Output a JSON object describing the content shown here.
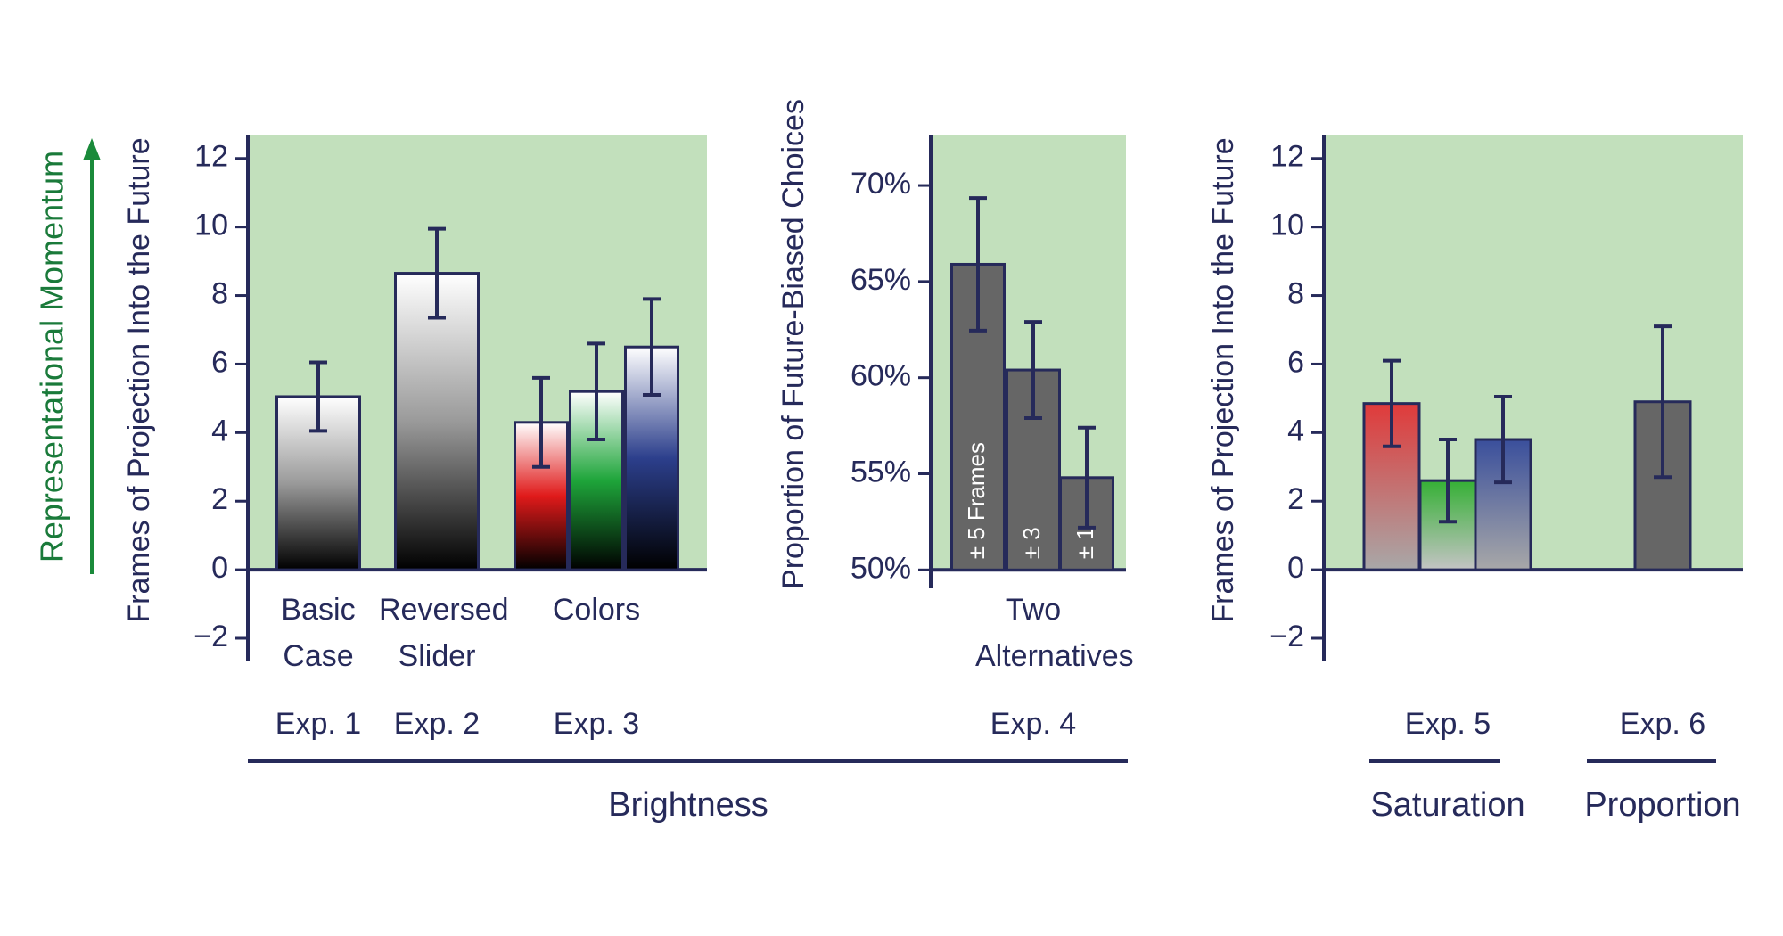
{
  "figure": {
    "side_label": "Representational Momentum",
    "spans": [
      "Brightness",
      "Saturation",
      "Proportion"
    ]
  },
  "chart_data": [
    {
      "type": "bar",
      "y_label": "Frames of Projection Into the Future",
      "ylim": [
        -2.65,
        12.67
      ],
      "yticks": [
        {
          "value": -2,
          "label": "−2"
        },
        0,
        2,
        4,
        6,
        8,
        10,
        12
      ],
      "background": "#c2e0bc",
      "groups": [
        {
          "label": "Basic Case",
          "experiment": "Exp. 1",
          "bars": [
            {
              "value": 5.05,
              "error": 1.0,
              "gradient": [
                "#ffffff",
                "#9a9a9a",
                "#000000"
              ]
            }
          ]
        },
        {
          "label": "Reversed Slider",
          "experiment": "Exp. 2",
          "bars": [
            {
              "value": 8.65,
              "error": 1.3,
              "gradient": [
                "#ffffff",
                "#9a9a9a",
                "#000000"
              ]
            }
          ]
        },
        {
          "label": "Colors",
          "experiment": "Exp. 3",
          "bars": [
            {
              "value": 4.3,
              "error": 1.3,
              "gradient": [
                "#ffffff",
                "#e01a1a",
                "#000000"
              ]
            },
            {
              "value": 5.2,
              "error": 1.4,
              "gradient": [
                "#ffffff",
                "#1ea53a",
                "#000000"
              ]
            },
            {
              "value": 6.5,
              "error": 1.4,
              "gradient": [
                "#ffffff",
                "#2c3f8c",
                "#000000"
              ]
            }
          ]
        }
      ]
    },
    {
      "type": "bar",
      "y_label": "Proportion of Future-Biased Choices",
      "ylim": [
        49.04,
        72.6
      ],
      "yticks": [
        {
          "value": 50,
          "label": "50%"
        },
        {
          "value": 55,
          "label": "55%"
        },
        {
          "value": 60,
          "label": "60%"
        },
        {
          "value": 65,
          "label": "65%"
        },
        {
          "value": 70,
          "label": "70%"
        }
      ],
      "background": "#c2e0bc",
      "groups": [
        {
          "label": "Two Alternatives",
          "experiment": "Exp. 4",
          "bars": [
            {
              "value": 65.9,
              "error": 3.45,
              "label": "± 5 Frames",
              "gradient": [
                "#666666"
              ]
            },
            {
              "value": 60.4,
              "error": 2.5,
              "label": "± 3",
              "gradient": [
                "#666666"
              ]
            },
            {
              "value": 54.8,
              "error": 2.6,
              "label": "± 1",
              "gradient": [
                "#666666"
              ]
            }
          ]
        }
      ]
    },
    {
      "type": "bar",
      "y_label": "Frames of Projection Into the Future",
      "ylim": [
        -2.65,
        12.67
      ],
      "yticks": [
        {
          "value": -2,
          "label": "−2"
        },
        0,
        2,
        4,
        6,
        8,
        10,
        12
      ],
      "background": "#c2e0bc",
      "groups": [
        {
          "experiment": "Exp. 5",
          "bars": [
            {
              "value": 4.85,
              "error": 1.25,
              "gradient": [
                "#e03a3a",
                "#a8a8a8"
              ]
            },
            {
              "value": 2.6,
              "error": 1.2,
              "gradient": [
                "#35b035",
                "#c4c4c4"
              ]
            },
            {
              "value": 3.8,
              "error": 1.25,
              "gradient": [
                "#3a4f9c",
                "#a8a8a8"
              ]
            }
          ]
        },
        {
          "experiment": "Exp. 6",
          "bars": [
            {
              "value": 4.9,
              "error": 2.2,
              "gradient": [
                "#666666"
              ]
            }
          ]
        }
      ]
    }
  ]
}
